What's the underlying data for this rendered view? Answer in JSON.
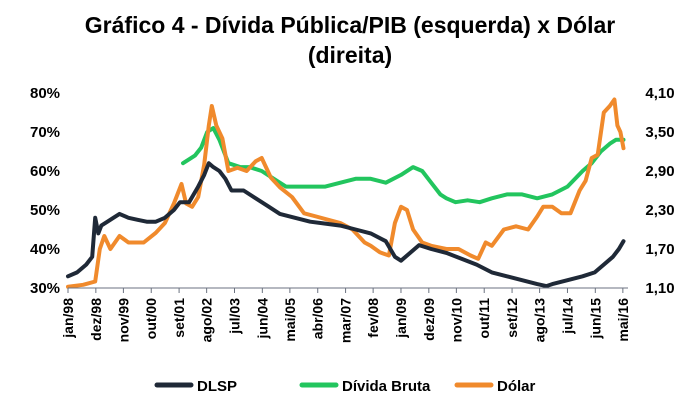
{
  "chart_data": {
    "type": "line",
    "title_line1": "Gráfico 4 - Dívida Pública/PIB (esquerda) x Dólar",
    "title_line2": "(direita)",
    "left_axis": {
      "ylim": [
        30,
        80
      ],
      "ticks": [
        "30%",
        "40%",
        "50%",
        "60%",
        "70%",
        "80%"
      ],
      "tick_values": [
        30,
        40,
        50,
        60,
        70,
        80
      ]
    },
    "right_axis": {
      "ylim": [
        1.1,
        4.1
      ],
      "ticks": [
        "1,10",
        "1,70",
        "2,30",
        "2,90",
        "3,50",
        "4,10"
      ],
      "tick_values": [
        1.1,
        1.7,
        2.3,
        2.9,
        3.5,
        4.1
      ]
    },
    "x_range": [
      1998.0,
      2016.5
    ],
    "x_ticks": [
      {
        "label": "jan/98",
        "x": 1998.0
      },
      {
        "label": "dez/98",
        "x": 1998.92
      },
      {
        "label": "nov/99",
        "x": 1999.83
      },
      {
        "label": "out/00",
        "x": 2000.75
      },
      {
        "label": "set/01",
        "x": 2001.67
      },
      {
        "label": "ago/02",
        "x": 2002.58
      },
      {
        "label": "jul/03",
        "x": 2003.5
      },
      {
        "label": "jun/04",
        "x": 2004.42
      },
      {
        "label": "mai/05",
        "x": 2005.33
      },
      {
        "label": "abr/06",
        "x": 2006.25
      },
      {
        "label": "mar/07",
        "x": 2007.17
      },
      {
        "label": "fev/08",
        "x": 2008.08
      },
      {
        "label": "jan/09",
        "x": 2009.0
      },
      {
        "label": "dez/09",
        "x": 2009.92
      },
      {
        "label": "nov/10",
        "x": 2010.83
      },
      {
        "label": "out/11",
        "x": 2011.75
      },
      {
        "label": "set/12",
        "x": 2012.67
      },
      {
        "label": "ago/13",
        "x": 2013.58
      },
      {
        "label": "jul/14",
        "x": 2014.5
      },
      {
        "label": "jun/15",
        "x": 2015.42
      },
      {
        "label": "mai/16",
        "x": 2016.33
      }
    ],
    "series": [
      {
        "name": "DLSP",
        "axis": "left",
        "color": "#1f2937",
        "points": [
          [
            1998.0,
            33
          ],
          [
            1998.3,
            34
          ],
          [
            1998.6,
            36
          ],
          [
            1998.8,
            38
          ],
          [
            1998.9,
            48
          ],
          [
            1999.0,
            44
          ],
          [
            1999.1,
            46
          ],
          [
            1999.3,
            47
          ],
          [
            1999.5,
            48
          ],
          [
            1999.7,
            49
          ],
          [
            2000.0,
            48
          ],
          [
            2000.3,
            47.5
          ],
          [
            2000.6,
            47
          ],
          [
            2000.9,
            47
          ],
          [
            2001.2,
            48
          ],
          [
            2001.5,
            50
          ],
          [
            2001.7,
            52
          ],
          [
            2002.0,
            52
          ],
          [
            2002.3,
            56
          ],
          [
            2002.5,
            59
          ],
          [
            2002.65,
            62
          ],
          [
            2002.8,
            61
          ],
          [
            2003.0,
            60
          ],
          [
            2003.2,
            58
          ],
          [
            2003.4,
            55
          ],
          [
            2003.8,
            55
          ],
          [
            2004.2,
            53
          ],
          [
            2004.6,
            51
          ],
          [
            2005.0,
            49
          ],
          [
            2005.5,
            48
          ],
          [
            2006.0,
            47
          ],
          [
            2006.5,
            46.5
          ],
          [
            2007.0,
            46
          ],
          [
            2007.5,
            45
          ],
          [
            2008.0,
            44
          ],
          [
            2008.5,
            42
          ],
          [
            2008.8,
            38
          ],
          [
            2009.0,
            37
          ],
          [
            2009.3,
            39
          ],
          [
            2009.6,
            41
          ],
          [
            2010.0,
            40
          ],
          [
            2010.5,
            39
          ],
          [
            2011.0,
            37.5
          ],
          [
            2011.5,
            36
          ],
          [
            2012.0,
            34
          ],
          [
            2012.5,
            33
          ],
          [
            2013.0,
            32
          ],
          [
            2013.5,
            31
          ],
          [
            2013.8,
            30.5
          ],
          [
            2014.0,
            31
          ],
          [
            2014.5,
            32
          ],
          [
            2015.0,
            33
          ],
          [
            2015.4,
            34
          ],
          [
            2015.7,
            36
          ],
          [
            2016.0,
            38
          ],
          [
            2016.2,
            40
          ],
          [
            2016.35,
            42
          ]
        ]
      },
      {
        "name": "Dívida Bruta",
        "axis": "left",
        "color": "#22c55e",
        "points": [
          [
            2001.8,
            62
          ],
          [
            2002.0,
            63
          ],
          [
            2002.2,
            64
          ],
          [
            2002.4,
            66
          ],
          [
            2002.6,
            70
          ],
          [
            2002.8,
            71
          ],
          [
            2003.0,
            68
          ],
          [
            2003.3,
            62
          ],
          [
            2003.7,
            61
          ],
          [
            2004.0,
            61
          ],
          [
            2004.4,
            60
          ],
          [
            2004.8,
            58
          ],
          [
            2005.2,
            56
          ],
          [
            2005.6,
            56
          ],
          [
            2006.0,
            56
          ],
          [
            2006.5,
            56
          ],
          [
            2007.0,
            57
          ],
          [
            2007.5,
            58
          ],
          [
            2008.0,
            58
          ],
          [
            2008.5,
            57
          ],
          [
            2009.0,
            59
          ],
          [
            2009.4,
            61
          ],
          [
            2009.7,
            60
          ],
          [
            2010.0,
            57
          ],
          [
            2010.3,
            54
          ],
          [
            2010.5,
            53
          ],
          [
            2010.8,
            52
          ],
          [
            2011.2,
            52.5
          ],
          [
            2011.6,
            52
          ],
          [
            2012.0,
            53
          ],
          [
            2012.5,
            54
          ],
          [
            2013.0,
            54
          ],
          [
            2013.5,
            53
          ],
          [
            2014.0,
            54
          ],
          [
            2014.5,
            56
          ],
          [
            2015.0,
            60
          ],
          [
            2015.3,
            62
          ],
          [
            2015.6,
            65
          ],
          [
            2015.9,
            67
          ],
          [
            2016.1,
            68
          ],
          [
            2016.35,
            68
          ]
        ]
      },
      {
        "name": "Dólar",
        "axis": "right",
        "color": "#f08a2c",
        "points": [
          [
            1998.0,
            1.12
          ],
          [
            1998.5,
            1.15
          ],
          [
            1998.9,
            1.2
          ],
          [
            1999.05,
            1.7
          ],
          [
            1999.2,
            1.9
          ],
          [
            1999.4,
            1.7
          ],
          [
            1999.7,
            1.9
          ],
          [
            2000.0,
            1.8
          ],
          [
            2000.5,
            1.8
          ],
          [
            2000.9,
            1.95
          ],
          [
            2001.2,
            2.1
          ],
          [
            2001.5,
            2.4
          ],
          [
            2001.75,
            2.7
          ],
          [
            2001.9,
            2.4
          ],
          [
            2002.1,
            2.35
          ],
          [
            2002.3,
            2.5
          ],
          [
            2002.5,
            3.0
          ],
          [
            2002.65,
            3.6
          ],
          [
            2002.75,
            3.9
          ],
          [
            2002.9,
            3.6
          ],
          [
            2003.1,
            3.4
          ],
          [
            2003.3,
            2.9
          ],
          [
            2003.6,
            2.95
          ],
          [
            2003.9,
            2.9
          ],
          [
            2004.2,
            3.05
          ],
          [
            2004.4,
            3.1
          ],
          [
            2004.7,
            2.8
          ],
          [
            2005.0,
            2.65
          ],
          [
            2005.4,
            2.5
          ],
          [
            2005.8,
            2.25
          ],
          [
            2006.2,
            2.2
          ],
          [
            2006.6,
            2.15
          ],
          [
            2007.0,
            2.1
          ],
          [
            2007.4,
            2.0
          ],
          [
            2007.8,
            1.8
          ],
          [
            2008.0,
            1.75
          ],
          [
            2008.3,
            1.65
          ],
          [
            2008.6,
            1.6
          ],
          [
            2008.8,
            2.1
          ],
          [
            2009.0,
            2.35
          ],
          [
            2009.2,
            2.3
          ],
          [
            2009.4,
            2.0
          ],
          [
            2009.7,
            1.8
          ],
          [
            2010.0,
            1.75
          ],
          [
            2010.5,
            1.7
          ],
          [
            2010.9,
            1.7
          ],
          [
            2011.3,
            1.6
          ],
          [
            2011.55,
            1.55
          ],
          [
            2011.8,
            1.8
          ],
          [
            2012.0,
            1.75
          ],
          [
            2012.4,
            2.0
          ],
          [
            2012.8,
            2.05
          ],
          [
            2013.2,
            2.0
          ],
          [
            2013.5,
            2.2
          ],
          [
            2013.7,
            2.35
          ],
          [
            2014.0,
            2.35
          ],
          [
            2014.3,
            2.25
          ],
          [
            2014.6,
            2.25
          ],
          [
            2014.9,
            2.6
          ],
          [
            2015.1,
            2.75
          ],
          [
            2015.3,
            3.1
          ],
          [
            2015.5,
            3.15
          ],
          [
            2015.7,
            3.8
          ],
          [
            2015.9,
            3.9
          ],
          [
            2016.05,
            4.0
          ],
          [
            2016.15,
            3.6
          ],
          [
            2016.25,
            3.5
          ],
          [
            2016.35,
            3.25
          ]
        ]
      }
    ],
    "legend": [
      {
        "name": "DLSP",
        "color": "#1f2937"
      },
      {
        "name": "Dívida Bruta",
        "color": "#22c55e"
      },
      {
        "name": "Dólar",
        "color": "#f08a2c"
      }
    ]
  }
}
